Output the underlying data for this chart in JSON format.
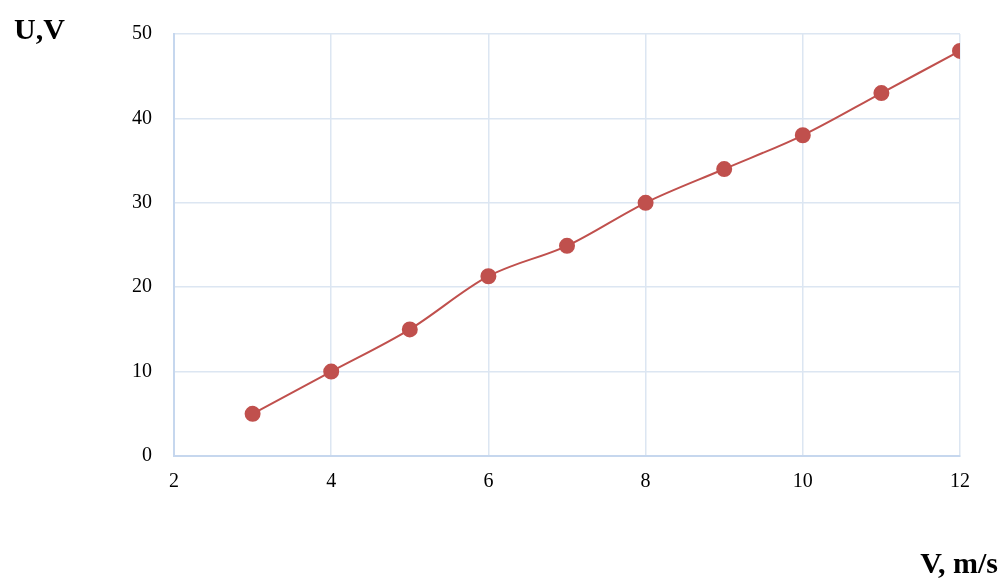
{
  "chart_data": {
    "type": "line",
    "xlabel": "V, m/s",
    "ylabel": "U,V",
    "x": [
      3,
      4,
      5,
      6,
      7,
      8,
      9,
      10,
      11,
      12
    ],
    "series": [
      {
        "color": "#c0504d",
        "values": [
          5,
          10,
          15,
          21.3,
          24.9,
          30,
          34,
          38,
          43,
          48
        ]
      }
    ],
    "xlim": [
      2,
      12
    ],
    "xticks": [
      2,
      4,
      6,
      8,
      10,
      12
    ],
    "ylim": [
      0,
      50
    ],
    "yticks": [
      0,
      10,
      20,
      30,
      40,
      50
    ],
    "grid": true,
    "legend": false,
    "marker": "circle",
    "line_style": "solid"
  }
}
